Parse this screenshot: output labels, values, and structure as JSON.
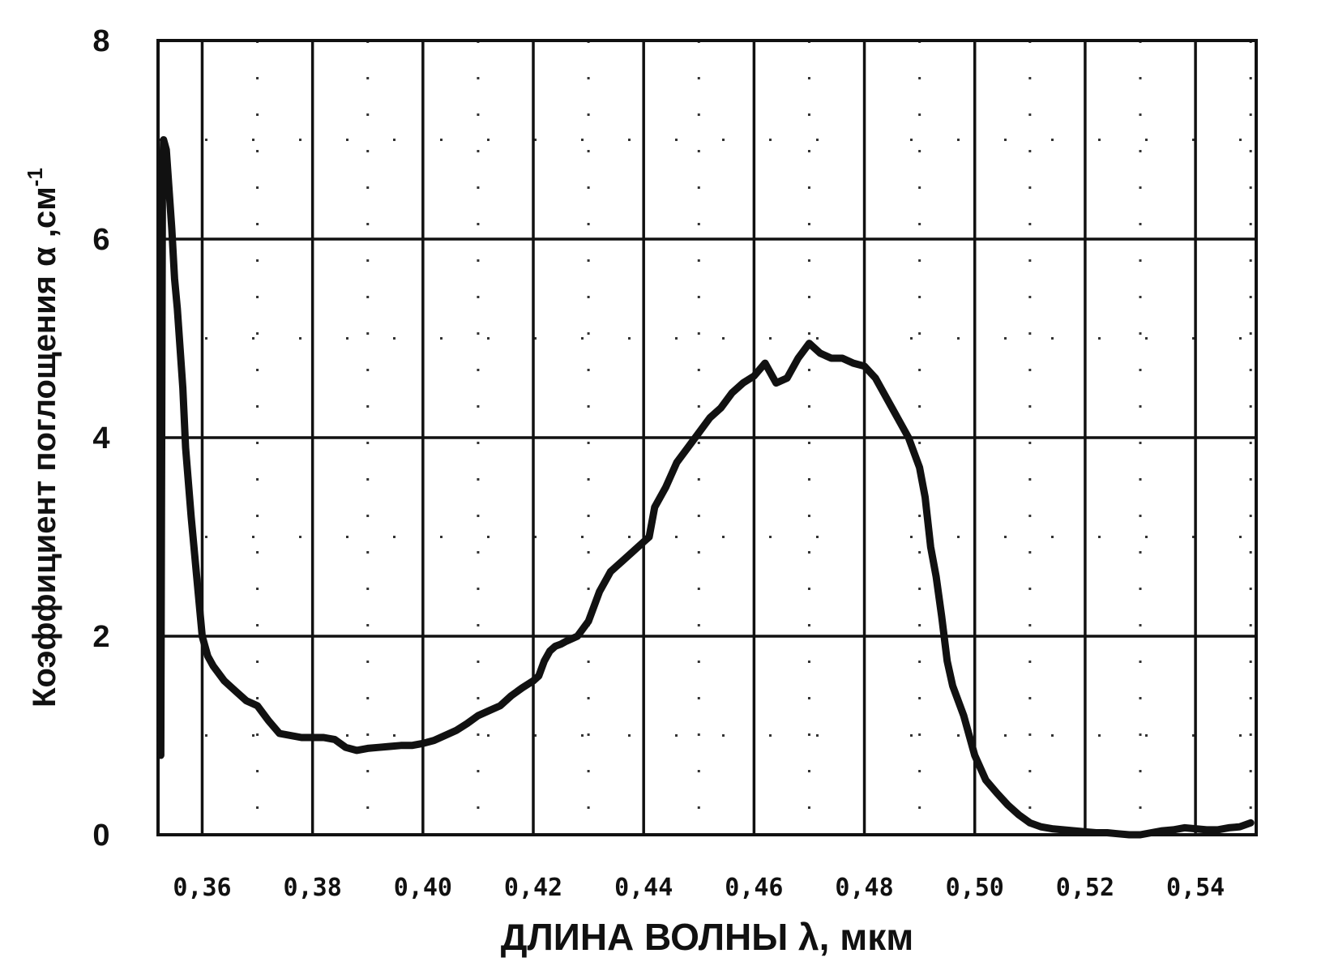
{
  "chart_data": {
    "type": "line",
    "xlabel": "ДЛИНА ВОЛНЫ λ, мкм",
    "ylabel": "Коэффициент поглощения α ,см",
    "ylabel_superscript": "-1",
    "xlim": [
      0.352,
      0.551
    ],
    "ylim": [
      0,
      8
    ],
    "x_ticks": [
      0.36,
      0.38,
      0.4,
      0.42,
      0.44,
      0.46,
      0.48,
      0.5,
      0.52,
      0.54
    ],
    "x_tick_labels": [
      "0,36",
      "0,38",
      "0,40",
      "0,42",
      "0,44",
      "0,46",
      "0,48",
      "0,50",
      "0,52",
      "0,54"
    ],
    "y_ticks": [
      0,
      2,
      4,
      6,
      8
    ],
    "y_tick_labels": [
      "0",
      "2",
      "4",
      "6",
      "8"
    ],
    "grid": true,
    "minor_grid": "dotted",
    "line_color": "#111111",
    "series": [
      {
        "x": [
          0.3525,
          0.3528,
          0.353,
          0.3535,
          0.354,
          0.3545,
          0.355,
          0.3555,
          0.356,
          0.3565,
          0.357,
          0.358,
          0.359,
          0.36,
          0.361,
          0.362,
          0.364,
          0.366,
          0.368,
          0.37,
          0.372,
          0.374,
          0.376,
          0.378,
          0.38,
          0.382,
          0.384,
          0.386,
          0.388,
          0.39,
          0.392,
          0.394,
          0.396,
          0.398,
          0.4,
          0.402,
          0.404,
          0.406,
          0.408,
          0.41,
          0.412,
          0.414,
          0.416,
          0.418,
          0.42,
          0.421,
          0.422,
          0.423,
          0.424,
          0.425,
          0.426,
          0.428,
          0.43,
          0.432,
          0.434,
          0.436,
          0.438,
          0.44,
          0.441,
          0.442,
          0.444,
          0.446,
          0.448,
          0.45,
          0.452,
          0.454,
          0.456,
          0.458,
          0.46,
          0.462,
          0.464,
          0.466,
          0.468,
          0.47,
          0.472,
          0.474,
          0.476,
          0.478,
          0.48,
          0.482,
          0.484,
          0.486,
          0.488,
          0.49,
          0.491,
          0.492,
          0.493,
          0.494,
          0.495,
          0.496,
          0.498,
          0.5,
          0.502,
          0.504,
          0.506,
          0.508,
          0.51,
          0.512,
          0.514,
          0.516,
          0.518,
          0.52,
          0.522,
          0.524,
          0.526,
          0.528,
          0.53,
          0.532,
          0.534,
          0.536,
          0.538,
          0.54,
          0.542,
          0.544,
          0.546,
          0.548,
          0.55
        ],
        "y": [
          0.8,
          6.5,
          7.0,
          6.9,
          6.5,
          6.1,
          5.6,
          5.3,
          4.9,
          4.5,
          3.9,
          3.2,
          2.6,
          2.0,
          1.8,
          1.7,
          1.55,
          1.45,
          1.35,
          1.3,
          1.15,
          1.02,
          1.0,
          0.98,
          0.98,
          0.98,
          0.96,
          0.88,
          0.85,
          0.87,
          0.88,
          0.89,
          0.9,
          0.9,
          0.92,
          0.95,
          1.0,
          1.05,
          1.12,
          1.2,
          1.25,
          1.3,
          1.4,
          1.48,
          1.55,
          1.6,
          1.75,
          1.85,
          1.9,
          1.92,
          1.95,
          2.0,
          2.15,
          2.45,
          2.65,
          2.75,
          2.85,
          2.95,
          3.0,
          3.3,
          3.5,
          3.75,
          3.9,
          4.05,
          4.2,
          4.3,
          4.45,
          4.55,
          4.62,
          4.75,
          4.55,
          4.6,
          4.8,
          4.95,
          4.85,
          4.8,
          4.8,
          4.75,
          4.72,
          4.6,
          4.4,
          4.2,
          4.0,
          3.7,
          3.4,
          2.9,
          2.6,
          2.2,
          1.75,
          1.5,
          1.2,
          0.8,
          0.55,
          0.42,
          0.3,
          0.2,
          0.12,
          0.08,
          0.06,
          0.05,
          0.04,
          0.03,
          0.02,
          0.02,
          0.01,
          0.0,
          0.0,
          0.02,
          0.04,
          0.05,
          0.07,
          0.06,
          0.05,
          0.05,
          0.07,
          0.08,
          0.12
        ]
      }
    ]
  }
}
